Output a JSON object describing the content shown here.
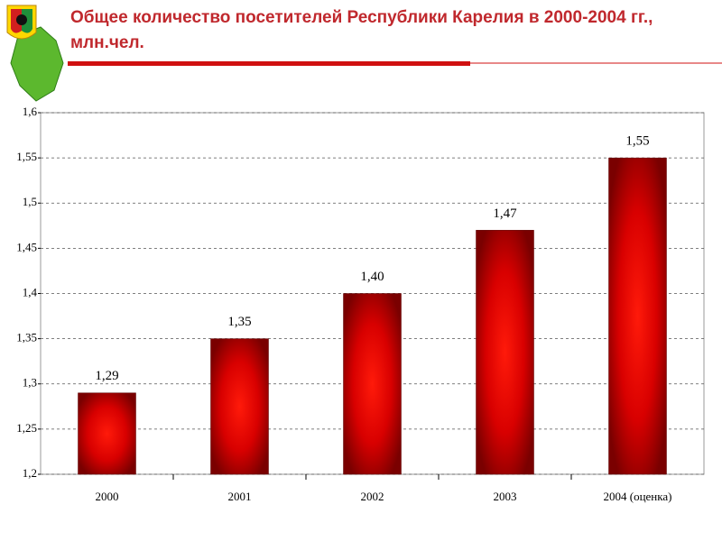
{
  "chart_data": {
    "type": "bar",
    "title": "Общее количество посетителей Республики Карелия в 2000-2004 гг., млн.чел.",
    "categories": [
      "2000",
      "2001",
      "2002",
      "2003",
      "2004 (оценка)"
    ],
    "values": [
      1.29,
      1.35,
      1.4,
      1.47,
      1.55
    ],
    "value_labels": [
      "1,29",
      "1,35",
      "1,40",
      "1,47",
      "1,55"
    ],
    "color": "#e00000",
    "ylim": [
      1.2,
      1.6
    ],
    "yticks": [
      {
        "value": 1.2,
        "label": "1,2"
      },
      {
        "value": 1.25,
        "label": "1,25"
      },
      {
        "value": 1.3,
        "label": "1,3"
      },
      {
        "value": 1.35,
        "label": "1,35"
      },
      {
        "value": 1.4,
        "label": "1,4"
      },
      {
        "value": 1.45,
        "label": "1,45"
      },
      {
        "value": 1.5,
        "label": "1,5"
      },
      {
        "value": 1.55,
        "label": "1,55"
      },
      {
        "value": 1.6,
        "label": "1,6"
      }
    ],
    "grid": true
  }
}
